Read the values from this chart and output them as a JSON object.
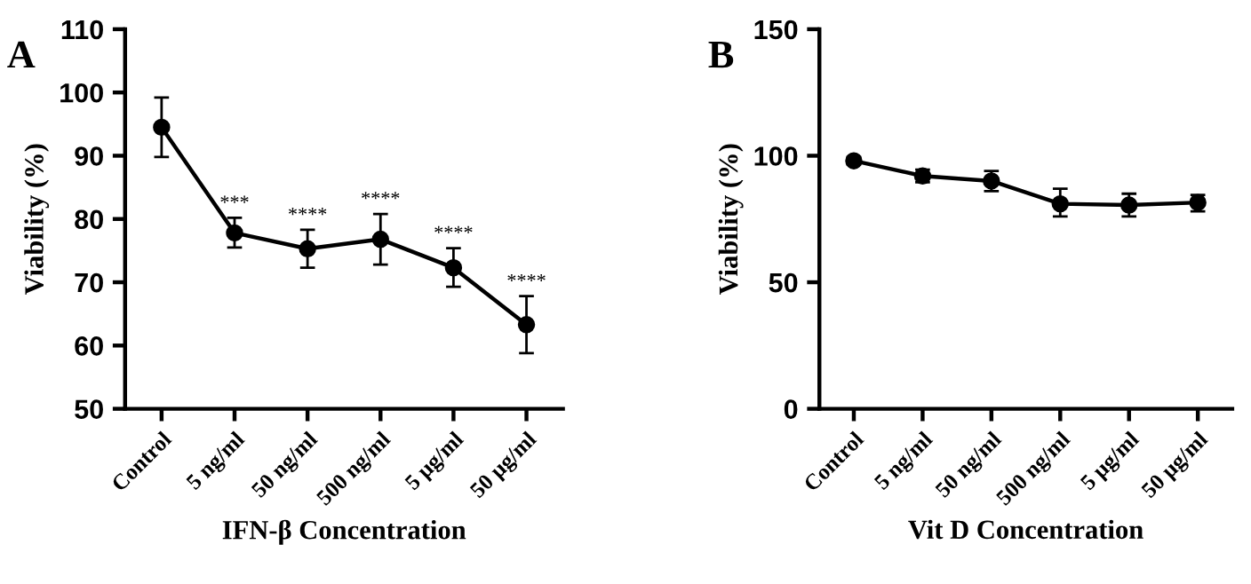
{
  "chart_data": [
    {
      "type": "line",
      "title": "A",
      "xlabel": "IFN-β Concentration",
      "ylabel": "Viability (%)",
      "categories": [
        "Control",
        "5 ng/ml",
        "50 ng/ml",
        "500 ng/ml",
        "5 µg/ml",
        "50 µg/ml"
      ],
      "series": [
        {
          "color": "#000000",
          "values": [
            94.5,
            77.8,
            75.3,
            76.8,
            72.3,
            63.3
          ],
          "errors": [
            [
              89.8,
              99.2
            ],
            [
              75.5,
              80.2
            ],
            [
              72.3,
              78.3
            ],
            [
              72.8,
              80.8
            ],
            [
              69.3,
              75.4
            ],
            [
              58.8,
              67.8
            ]
          ]
        }
      ],
      "ylim": [
        50,
        110
      ],
      "yticks": [
        50,
        60,
        70,
        80,
        90,
        100,
        110
      ],
      "marker": "circle",
      "grid": false,
      "legend": false,
      "annotations": [
        {
          "text": "***",
          "x": "5 ng/ml",
          "y": 80.2
        },
        {
          "text": "****",
          "x": "50 ng/ml",
          "y": 78.3
        },
        {
          "text": "****",
          "x": "500 ng/ml",
          "y": 80.8
        },
        {
          "text": "****",
          "x": "5 µg/ml",
          "y": 75.4
        },
        {
          "text": "****",
          "x": "50 µg/ml",
          "y": 67.8
        }
      ]
    },
    {
      "type": "line",
      "title": "B",
      "xlabel": "Vit D Concentration",
      "ylabel": "Viability (%)",
      "categories": [
        "Control",
        "5 ng/ml",
        "50 ng/ml",
        "500 ng/ml",
        "5 µg/ml",
        "50 µg/ml"
      ],
      "series": [
        {
          "color": "#000000",
          "values": [
            98,
            92,
            90,
            81,
            80.5,
            81.5
          ],
          "errors": [
            [
              96.5,
              99.5
            ],
            [
              89.5,
              94.5
            ],
            [
              86,
              94
            ],
            [
              76,
              87
            ],
            [
              76,
              85
            ],
            [
              78,
              84.5
            ]
          ]
        }
      ],
      "ylim": [
        0,
        150
      ],
      "yticks": [
        0,
        50,
        100,
        150
      ],
      "marker": "circle",
      "grid": false,
      "legend": false
    }
  ]
}
